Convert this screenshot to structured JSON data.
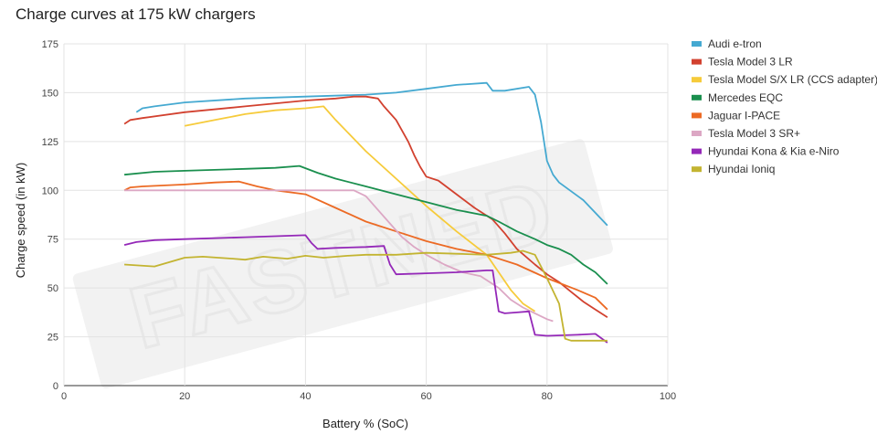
{
  "chart_data": {
    "type": "line",
    "title": "Charge curves at 175 kW chargers",
    "xlabel": "Battery % (SoC)",
    "ylabel": "Charge speed (in kW)",
    "xlim": [
      0,
      100
    ],
    "ylim": [
      0,
      175
    ],
    "x_ticks": [
      0,
      20,
      40,
      60,
      80,
      100
    ],
    "y_ticks": [
      0,
      25,
      50,
      75,
      100,
      125,
      150,
      175
    ],
    "grid": true,
    "legend_position": "right",
    "watermark": "FASTNED",
    "series": [
      {
        "name": "Audi e-tron",
        "color": "#45a9d1",
        "points": [
          [
            12,
            140
          ],
          [
            13,
            142
          ],
          [
            15,
            143
          ],
          [
            20,
            145
          ],
          [
            30,
            147
          ],
          [
            40,
            148
          ],
          [
            50,
            149
          ],
          [
            55,
            150
          ],
          [
            60,
            152
          ],
          [
            65,
            154
          ],
          [
            70,
            155
          ],
          [
            71,
            151
          ],
          [
            73,
            151
          ],
          [
            77,
            153
          ],
          [
            78,
            149
          ],
          [
            79,
            135
          ],
          [
            80,
            115
          ],
          [
            81,
            108
          ],
          [
            82,
            104
          ],
          [
            86,
            95
          ],
          [
            90,
            82
          ]
        ]
      },
      {
        "name": "Tesla Model 3 LR",
        "color": "#d2412f",
        "points": [
          [
            10,
            134
          ],
          [
            11,
            136
          ],
          [
            13,
            137
          ],
          [
            20,
            140
          ],
          [
            30,
            143
          ],
          [
            40,
            146
          ],
          [
            45,
            147
          ],
          [
            48,
            148
          ],
          [
            50,
            148
          ],
          [
            52,
            147
          ],
          [
            53,
            143
          ],
          [
            55,
            136
          ],
          [
            57,
            125
          ],
          [
            58,
            118
          ],
          [
            59,
            112
          ],
          [
            60,
            107
          ],
          [
            62,
            105
          ],
          [
            65,
            98
          ],
          [
            68,
            91
          ],
          [
            71,
            85
          ],
          [
            73,
            78
          ],
          [
            75,
            70
          ],
          [
            78,
            62
          ],
          [
            80,
            57
          ],
          [
            82,
            53
          ],
          [
            84,
            48
          ],
          [
            86,
            43
          ],
          [
            88,
            39
          ],
          [
            90,
            35
          ]
        ]
      },
      {
        "name": "Tesla Model S/X LR (CCS adapter)",
        "color": "#f6cb3b",
        "points": [
          [
            20,
            133
          ],
          [
            25,
            136
          ],
          [
            30,
            139
          ],
          [
            35,
            141
          ],
          [
            40,
            142
          ],
          [
            43,
            143
          ],
          [
            45,
            136
          ],
          [
            50,
            120
          ],
          [
            55,
            106
          ],
          [
            60,
            92
          ],
          [
            65,
            79
          ],
          [
            70,
            67
          ],
          [
            72,
            58
          ],
          [
            74,
            49
          ],
          [
            76,
            42
          ],
          [
            78,
            38
          ]
        ]
      },
      {
        "name": "Mercedes EQC",
        "color": "#1a8f4e",
        "points": [
          [
            10,
            108
          ],
          [
            15,
            109.5
          ],
          [
            20,
            110
          ],
          [
            30,
            111
          ],
          [
            35,
            111.5
          ],
          [
            39,
            112.5
          ],
          [
            42,
            109
          ],
          [
            45,
            106
          ],
          [
            50,
            102
          ],
          [
            55,
            98
          ],
          [
            60,
            94
          ],
          [
            65,
            90
          ],
          [
            70,
            87
          ],
          [
            72,
            84
          ],
          [
            75,
            79
          ],
          [
            78,
            75
          ],
          [
            80,
            72
          ],
          [
            82,
            70
          ],
          [
            84,
            67
          ],
          [
            86,
            62
          ],
          [
            88,
            58
          ],
          [
            90,
            52
          ]
        ]
      },
      {
        "name": "Jaguar I-PACE",
        "color": "#ec6a24",
        "points": [
          [
            10,
            100
          ],
          [
            11,
            101.5
          ],
          [
            13,
            102
          ],
          [
            20,
            103
          ],
          [
            25,
            104
          ],
          [
            29,
            104.5
          ],
          [
            32,
            102
          ],
          [
            35,
            100
          ],
          [
            40,
            98
          ],
          [
            45,
            91
          ],
          [
            50,
            84
          ],
          [
            55,
            79
          ],
          [
            60,
            74
          ],
          [
            65,
            70
          ],
          [
            70,
            67
          ],
          [
            75,
            62
          ],
          [
            80,
            55
          ],
          [
            85,
            49
          ],
          [
            88,
            45
          ],
          [
            90,
            39
          ]
        ]
      },
      {
        "name": "Tesla Model 3 SR+",
        "color": "#dca7c4",
        "points": [
          [
            10,
            100
          ],
          [
            20,
            100
          ],
          [
            30,
            100
          ],
          [
            40,
            100
          ],
          [
            48,
            100
          ],
          [
            50,
            97
          ],
          [
            52,
            90
          ],
          [
            54,
            83
          ],
          [
            56,
            76
          ],
          [
            58,
            71
          ],
          [
            60,
            67
          ],
          [
            63,
            62
          ],
          [
            66,
            58
          ],
          [
            69,
            56
          ],
          [
            72,
            50
          ],
          [
            74,
            44
          ],
          [
            76,
            40
          ],
          [
            78,
            37
          ],
          [
            80,
            34
          ],
          [
            81,
            33
          ]
        ]
      },
      {
        "name": "Hyundai Kona & Kia e-Niro",
        "color": "#9428b8",
        "points": [
          [
            10,
            72
          ],
          [
            12,
            73.5
          ],
          [
            15,
            74.5
          ],
          [
            20,
            75
          ],
          [
            30,
            76
          ],
          [
            35,
            76.5
          ],
          [
            40,
            77
          ],
          [
            41,
            73
          ],
          [
            42,
            70
          ],
          [
            45,
            70.5
          ],
          [
            50,
            71
          ],
          [
            53,
            71.5
          ],
          [
            54,
            62
          ],
          [
            55,
            57
          ],
          [
            60,
            57.5
          ],
          [
            65,
            58
          ],
          [
            70,
            59
          ],
          [
            71,
            59
          ],
          [
            72,
            38
          ],
          [
            73,
            37
          ],
          [
            75,
            37.5
          ],
          [
            77,
            38
          ],
          [
            78,
            26
          ],
          [
            80,
            25.5
          ],
          [
            85,
            26
          ],
          [
            88,
            26.5
          ],
          [
            90,
            22
          ]
        ]
      },
      {
        "name": "Hyundai Ioniq",
        "color": "#c3b431",
        "points": [
          [
            10,
            62
          ],
          [
            15,
            61
          ],
          [
            20,
            65.5
          ],
          [
            23,
            66
          ],
          [
            28,
            65
          ],
          [
            30,
            64.5
          ],
          [
            33,
            66
          ],
          [
            37,
            65
          ],
          [
            40,
            66.5
          ],
          [
            43,
            65.5
          ],
          [
            47,
            66.5
          ],
          [
            50,
            67
          ],
          [
            55,
            67
          ],
          [
            60,
            68
          ],
          [
            65,
            67.5
          ],
          [
            70,
            67
          ],
          [
            74,
            68
          ],
          [
            76,
            69
          ],
          [
            78,
            67
          ],
          [
            80,
            55
          ],
          [
            82,
            42
          ],
          [
            83,
            24
          ],
          [
            84,
            23
          ],
          [
            90,
            23
          ]
        ]
      }
    ]
  }
}
